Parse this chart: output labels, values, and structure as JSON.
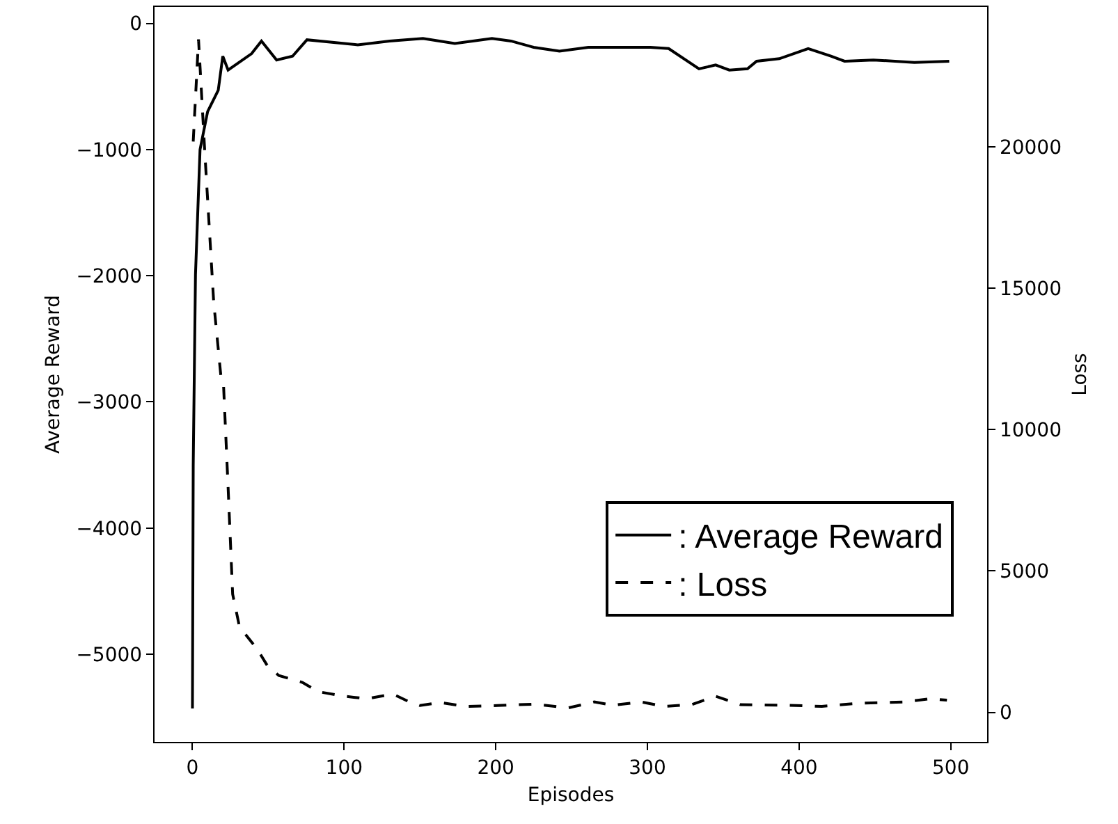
{
  "chart_data": {
    "type": "line",
    "xlabel": "Episodes",
    "ylabel": "Average Reward",
    "y2label": "Loss",
    "xlim": [
      -25,
      524
    ],
    "xticks": [
      0,
      100,
      200,
      300,
      400,
      500
    ],
    "ylim": [
      -5695,
      130
    ],
    "yticks": [
      -5000,
      -4000,
      -3000,
      -2000,
      -1000,
      0
    ],
    "y2lim": [
      -1045,
      24950
    ],
    "y2ticks": [
      0,
      5000,
      10000,
      15000,
      20000
    ],
    "grid": false,
    "legend": "bottom right",
    "marker": "none",
    "series": [
      {
        "name": ": Average Reward",
        "color": "#000000",
        "line_style": "solid",
        "x": [
          0,
          0.5,
          2,
          5,
          10,
          17,
          20,
          23.5,
          39,
          45.5,
          55.5,
          66,
          75.5,
          109,
          130,
          152,
          173,
          197.5,
          210,
          225,
          242,
          261,
          302,
          314,
          334,
          345,
          354,
          366,
          372,
          387,
          406,
          421,
          430,
          449,
          476,
          499
        ],
        "values": [
          -5430,
          -3500,
          -1990,
          -1000,
          -700,
          -530,
          -260,
          -370,
          -240,
          -140,
          -290,
          -260,
          -130,
          -170,
          -140,
          -120,
          -160,
          -120,
          -140,
          -190,
          -220,
          -190,
          -190,
          -200,
          -360,
          -330,
          -370,
          -360,
          -300,
          -280,
          -200,
          -260,
          -300,
          -290,
          -310,
          -300
        ]
      },
      {
        "name": ": Loss",
        "color": "#000000",
        "line_style": "dashed",
        "axis": "y2",
        "x": [
          0.5,
          4,
          8,
          14,
          19,
          20.5,
          23.5,
          26.5,
          31,
          43,
          49.5,
          57,
          72.5,
          83,
          100,
          115,
          132,
          143,
          150,
          163,
          180,
          201,
          225,
          248,
          265,
          277,
          296,
          311,
          329,
          345,
          361.5,
          393,
          415,
          439.5,
          470,
          486.5,
          497.5
        ],
        "values": [
          20190,
          23800,
          19940,
          14520,
          11750,
          11570,
          7960,
          4180,
          3030,
          2210,
          1640,
          1300,
          1060,
          730,
          570,
          480,
          650,
          370,
          240,
          350,
          210,
          240,
          290,
          160,
          370,
          250,
          370,
          210,
          270,
          570,
          270,
          250,
          210,
          320,
          370,
          480,
          430
        ]
      }
    ]
  }
}
